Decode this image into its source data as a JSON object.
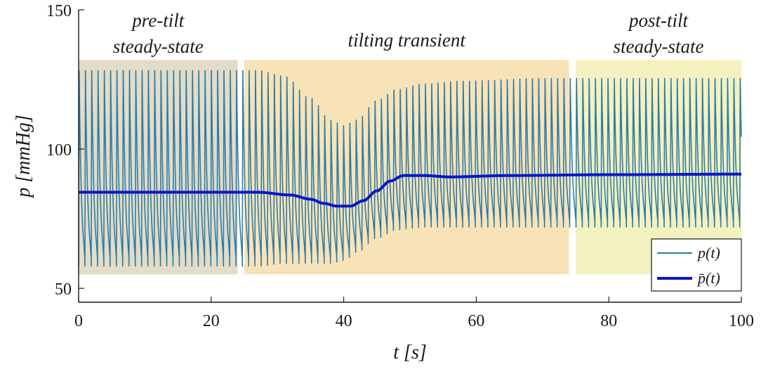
{
  "chart_data": {
    "type": "line",
    "xlabel": "t [s]",
    "ylabel": "p [mmHg]",
    "xlim": [
      0,
      100
    ],
    "ylim": [
      45,
      150
    ],
    "xticks": [
      0,
      20,
      40,
      60,
      80,
      100
    ],
    "yticks": [
      50,
      100,
      150
    ],
    "grid": false,
    "legend_position": "bottom-right",
    "phases": [
      {
        "label_lines": [
          "pre-tilt",
          "steady-state"
        ],
        "x_start": 0,
        "x_end": 24,
        "y_bottom": 55,
        "y_top": 132,
        "color": "#e3dcc8"
      },
      {
        "label_lines": [
          "tilting transient"
        ],
        "x_start": 25,
        "x_end": 74,
        "y_bottom": 55,
        "y_top": 132,
        "color": "#f8e3b8"
      },
      {
        "label_lines": [
          "post-tilt",
          "steady-state"
        ],
        "x_start": 75,
        "x_end": 100,
        "y_bottom": 55,
        "y_top": 132,
        "color": "#f4f1c0"
      }
    ],
    "series": [
      {
        "name": "p(t)",
        "color": "#2e7ba6",
        "kind": "oscillating",
        "period": 0.95,
        "envelope_x": [
          0,
          27,
          31,
          35,
          38,
          40,
          42,
          45,
          48,
          52,
          58,
          70,
          100
        ],
        "envelope_max": [
          129,
          129,
          127,
          119,
          111,
          109,
          111,
          118,
          122,
          124,
          125,
          126,
          126
        ],
        "envelope_min": [
          58,
          58,
          59,
          59,
          59,
          60,
          63,
          68,
          71,
          72,
          72,
          72,
          72
        ]
      },
      {
        "name": "p̄(t)",
        "color": "#0a16c8",
        "kind": "line",
        "x": [
          0,
          27,
          32,
          35,
          37,
          39,
          41,
          43,
          45,
          47,
          49,
          52,
          56,
          65,
          80,
          100
        ],
        "y": [
          84.5,
          84.5,
          83.5,
          82,
          80.5,
          79.5,
          79.5,
          81.5,
          85,
          88.5,
          90.5,
          90.5,
          90,
          90.5,
          90.8,
          91
        ]
      }
    ]
  }
}
